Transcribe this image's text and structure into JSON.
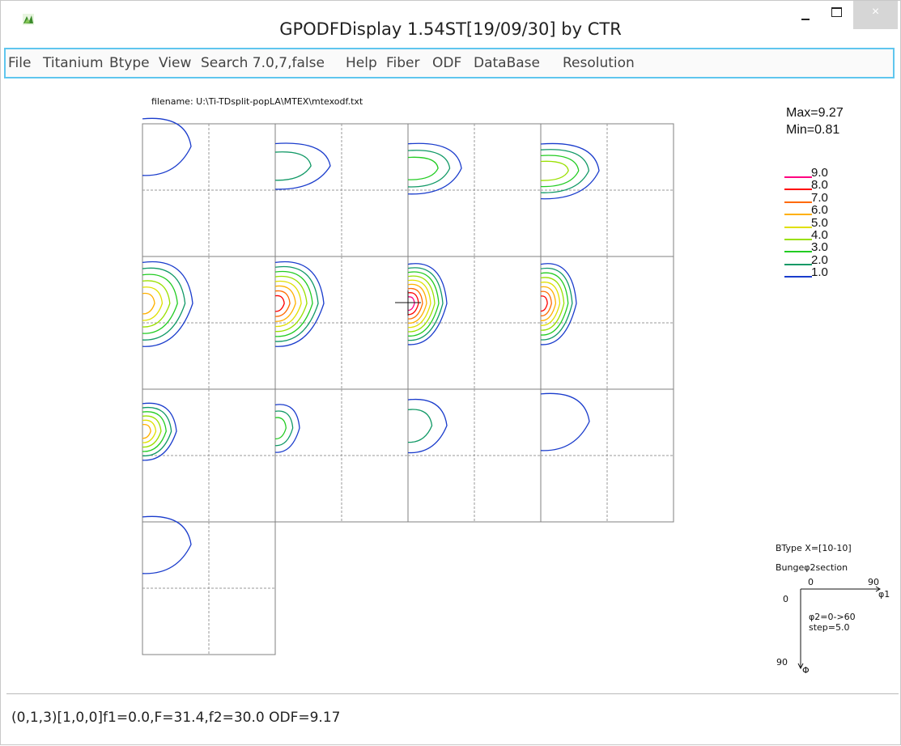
{
  "window": {
    "title": "GPODFDisplay 1.54ST[19/09/30] by CTR",
    "icon": "app-icon"
  },
  "menu": [
    "File",
    "Titanium",
    "Btype",
    "View",
    "Search 7.0,7,false",
    "Help",
    "Fiber",
    "ODF",
    "DataBase",
    "Resolution"
  ],
  "plot": {
    "filename_label": "filename: U:\\Ti-TDsplit-popLA\\MTEX\\mtexodf.txt",
    "max_label": "Max=9.27",
    "min_label": "Min=0.81",
    "legend": [
      {
        "label": "9.0",
        "color": "#ff0080"
      },
      {
        "label": "8.0",
        "color": "#ff0000"
      },
      {
        "label": "7.0",
        "color": "#ff6a00"
      },
      {
        "label": "6.0",
        "color": "#ffb000"
      },
      {
        "label": "5.0",
        "color": "#e0e000"
      },
      {
        "label": "4.0",
        "color": "#9ae000"
      },
      {
        "label": "3.0",
        "color": "#22cc22"
      },
      {
        "label": "2.0",
        "color": "#119966"
      },
      {
        "label": "1.0",
        "color": "#1a3ccc"
      }
    ],
    "axes_info": {
      "btype": "BType X=[10-10]",
      "section": "Bungeφ2section",
      "phi1_start": "0",
      "phi1_end": "90",
      "phi1_label": "φ1",
      "Phi_start": "0",
      "Phi_end": "90",
      "Phi_label": "Φ",
      "range_line1": "φ2=0->60",
      "range_line2": "step=5.0"
    }
  },
  "status": {
    "text": "(0,1,3)[1,0,0]f1=0.0,F=31.4,f2=30.0 ODF=9.17"
  }
}
